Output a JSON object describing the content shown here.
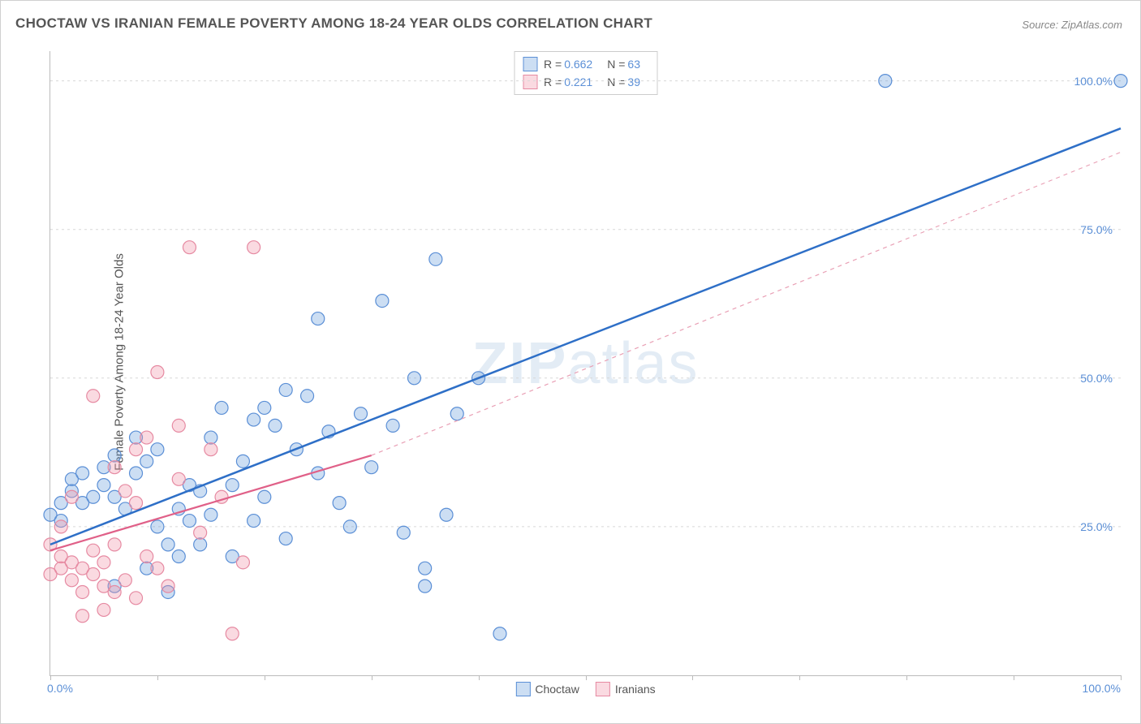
{
  "title": "CHOCTAW VS IRANIAN FEMALE POVERTY AMONG 18-24 YEAR OLDS CORRELATION CHART",
  "source_label": "Source:",
  "source_value": "ZipAtlas.com",
  "ylabel": "Female Poverty Among 18-24 Year Olds",
  "watermark_a": "ZIP",
  "watermark_b": "atlas",
  "chart": {
    "type": "scatter",
    "xlim": [
      0,
      100
    ],
    "ylim": [
      0,
      105
    ],
    "x_axis_min_label": "0.0%",
    "x_axis_max_label": "100.0%",
    "y_ticks": [
      25,
      50,
      75,
      100
    ],
    "y_tick_labels": [
      "25.0%",
      "50.0%",
      "75.0%",
      "100.0%"
    ],
    "x_tick_positions": [
      0,
      10,
      20,
      30,
      40,
      50,
      60,
      70,
      80,
      90,
      100
    ],
    "grid_color": "#d8d8d8",
    "background_color": "#ffffff",
    "axis_color": "#bbbbbb",
    "tick_label_color": "#5b8fd6",
    "marker_radius": 8,
    "marker_stroke_width": 1.2,
    "series": [
      {
        "name": "Choctaw",
        "fill": "rgba(110,160,220,0.35)",
        "stroke": "#5b8fd6",
        "R": "0.662",
        "N": "63",
        "trend": {
          "x1": 0,
          "y1": 22,
          "x2": 100,
          "y2": 92,
          "stroke": "#2e6fc7",
          "width": 2.5,
          "dash": ""
        },
        "points": [
          [
            0,
            27
          ],
          [
            1,
            26
          ],
          [
            1,
            29
          ],
          [
            2,
            31
          ],
          [
            2,
            33
          ],
          [
            3,
            29
          ],
          [
            3,
            34
          ],
          [
            4,
            30
          ],
          [
            5,
            32
          ],
          [
            5,
            35
          ],
          [
            6,
            30
          ],
          [
            6,
            37
          ],
          [
            7,
            28
          ],
          [
            8,
            34
          ],
          [
            8,
            40
          ],
          [
            9,
            36
          ],
          [
            10,
            25
          ],
          [
            10,
            38
          ],
          [
            11,
            22
          ],
          [
            12,
            20
          ],
          [
            12,
            28
          ],
          [
            13,
            26
          ],
          [
            13,
            32
          ],
          [
            14,
            31
          ],
          [
            15,
            27
          ],
          [
            15,
            40
          ],
          [
            16,
            45
          ],
          [
            17,
            32
          ],
          [
            18,
            36
          ],
          [
            19,
            26
          ],
          [
            20,
            30
          ],
          [
            20,
            45
          ],
          [
            21,
            42
          ],
          [
            22,
            23
          ],
          [
            23,
            38
          ],
          [
            24,
            47
          ],
          [
            25,
            60
          ],
          [
            26,
            41
          ],
          [
            27,
            29
          ],
          [
            28,
            25
          ],
          [
            29,
            44
          ],
          [
            30,
            35
          ],
          [
            31,
            63
          ],
          [
            32,
            42
          ],
          [
            33,
            24
          ],
          [
            34,
            50
          ],
          [
            35,
            18
          ],
          [
            35,
            15
          ],
          [
            36,
            70
          ],
          [
            37,
            27
          ],
          [
            38,
            44
          ],
          [
            40,
            50
          ],
          [
            42,
            7
          ],
          [
            78,
            100
          ],
          [
            100,
            100
          ],
          [
            6,
            15
          ],
          [
            9,
            18
          ],
          [
            11,
            14
          ],
          [
            14,
            22
          ],
          [
            17,
            20
          ],
          [
            19,
            43
          ],
          [
            22,
            48
          ],
          [
            25,
            34
          ]
        ]
      },
      {
        "name": "Iranians",
        "fill": "rgba(240,150,170,0.35)",
        "stroke": "#e68aa2",
        "R": "0.221",
        "N": "39",
        "trend_solid": {
          "x1": 0,
          "y1": 21,
          "x2": 30,
          "y2": 37,
          "stroke": "#e06088",
          "width": 2.2,
          "dash": ""
        },
        "trend_dash": {
          "x1": 30,
          "y1": 37,
          "x2": 100,
          "y2": 88,
          "stroke": "#e9a0b5",
          "width": 1.2,
          "dash": "5,5"
        },
        "points": [
          [
            0,
            22
          ],
          [
            1,
            20
          ],
          [
            1,
            18
          ],
          [
            2,
            19
          ],
          [
            2,
            16
          ],
          [
            3,
            18
          ],
          [
            3,
            14
          ],
          [
            4,
            17
          ],
          [
            4,
            21
          ],
          [
            5,
            15
          ],
          [
            5,
            19
          ],
          [
            6,
            14
          ],
          [
            6,
            22
          ],
          [
            7,
            16
          ],
          [
            7,
            31
          ],
          [
            8,
            13
          ],
          [
            8,
            29
          ],
          [
            9,
            20
          ],
          [
            9,
            40
          ],
          [
            10,
            18
          ],
          [
            10,
            51
          ],
          [
            11,
            15
          ],
          [
            12,
            33
          ],
          [
            12,
            42
          ],
          [
            13,
            72
          ],
          [
            14,
            24
          ],
          [
            15,
            38
          ],
          [
            16,
            30
          ],
          [
            17,
            7
          ],
          [
            18,
            19
          ],
          [
            19,
            72
          ],
          [
            4,
            47
          ],
          [
            6,
            35
          ],
          [
            8,
            38
          ],
          [
            3,
            10
          ],
          [
            5,
            11
          ],
          [
            2,
            30
          ],
          [
            1,
            25
          ],
          [
            0,
            17
          ]
        ]
      }
    ],
    "legend_bottom": [
      {
        "label": "Choctaw",
        "fill": "rgba(110,160,220,0.35)",
        "stroke": "#5b8fd6"
      },
      {
        "label": "Iranians",
        "fill": "rgba(240,150,170,0.35)",
        "stroke": "#e68aa2"
      }
    ]
  }
}
